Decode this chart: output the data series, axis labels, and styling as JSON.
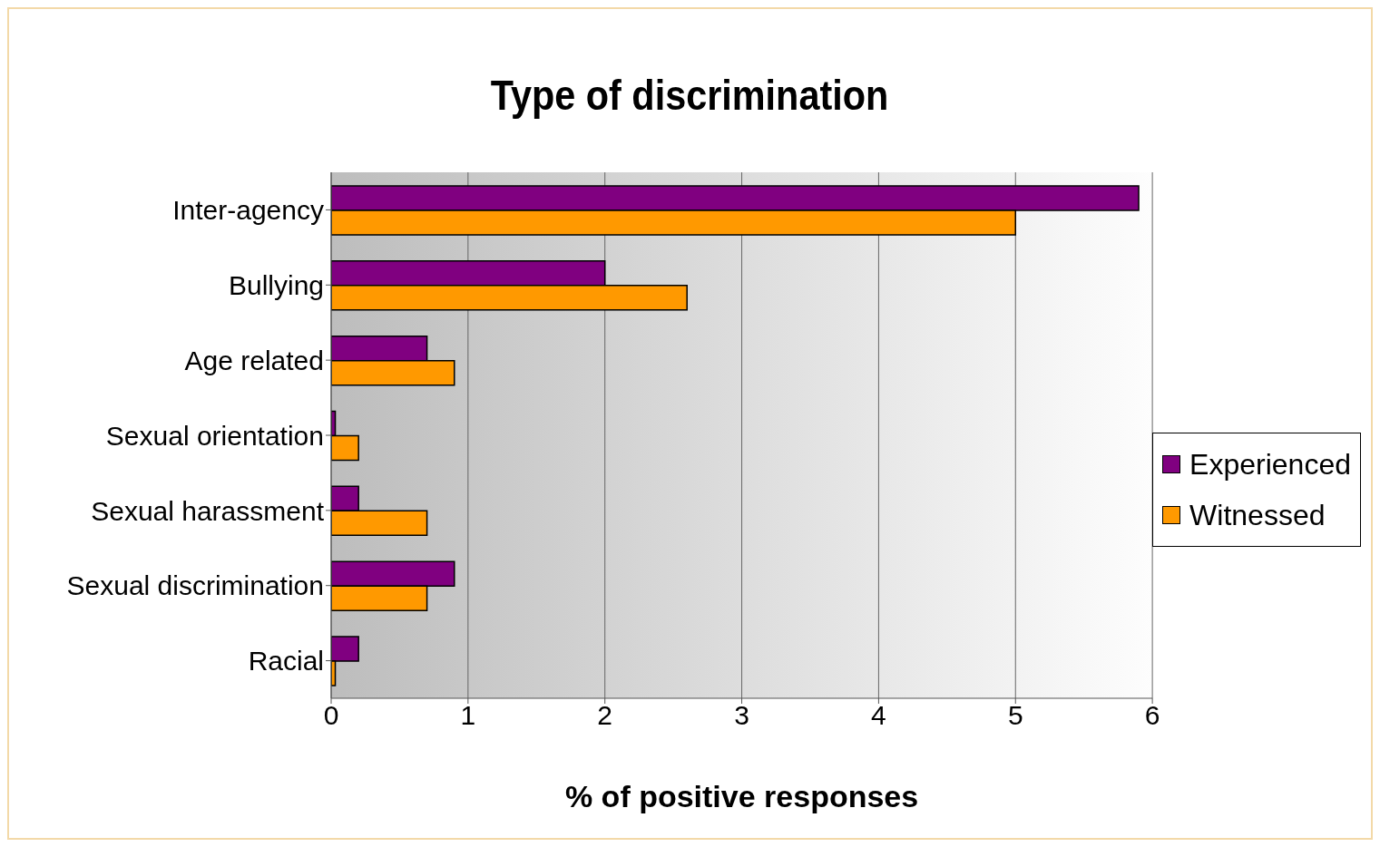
{
  "chart_data": {
    "type": "bar",
    "orientation": "horizontal",
    "title": "Type of discrimination",
    "xlabel": "% of positive responses",
    "categories": [
      "Inter-agency",
      "Bullying",
      "Age related",
      "Sexual orientation",
      "Sexual harassment",
      "Sexual discrimination",
      "Racial"
    ],
    "series": [
      {
        "name": "Experienced",
        "color": "#800080",
        "values": [
          5.9,
          2.0,
          0.7,
          0.03,
          0.2,
          0.9,
          0.2
        ]
      },
      {
        "name": "Witnessed",
        "color": "#ff9900",
        "values": [
          5.0,
          2.6,
          0.9,
          0.2,
          0.7,
          0.7,
          0.03
        ]
      }
    ],
    "xlim": [
      0,
      6
    ],
    "xticks": [
      0,
      1,
      2,
      3,
      4,
      5,
      6
    ],
    "grid": "x",
    "legend": "right"
  }
}
